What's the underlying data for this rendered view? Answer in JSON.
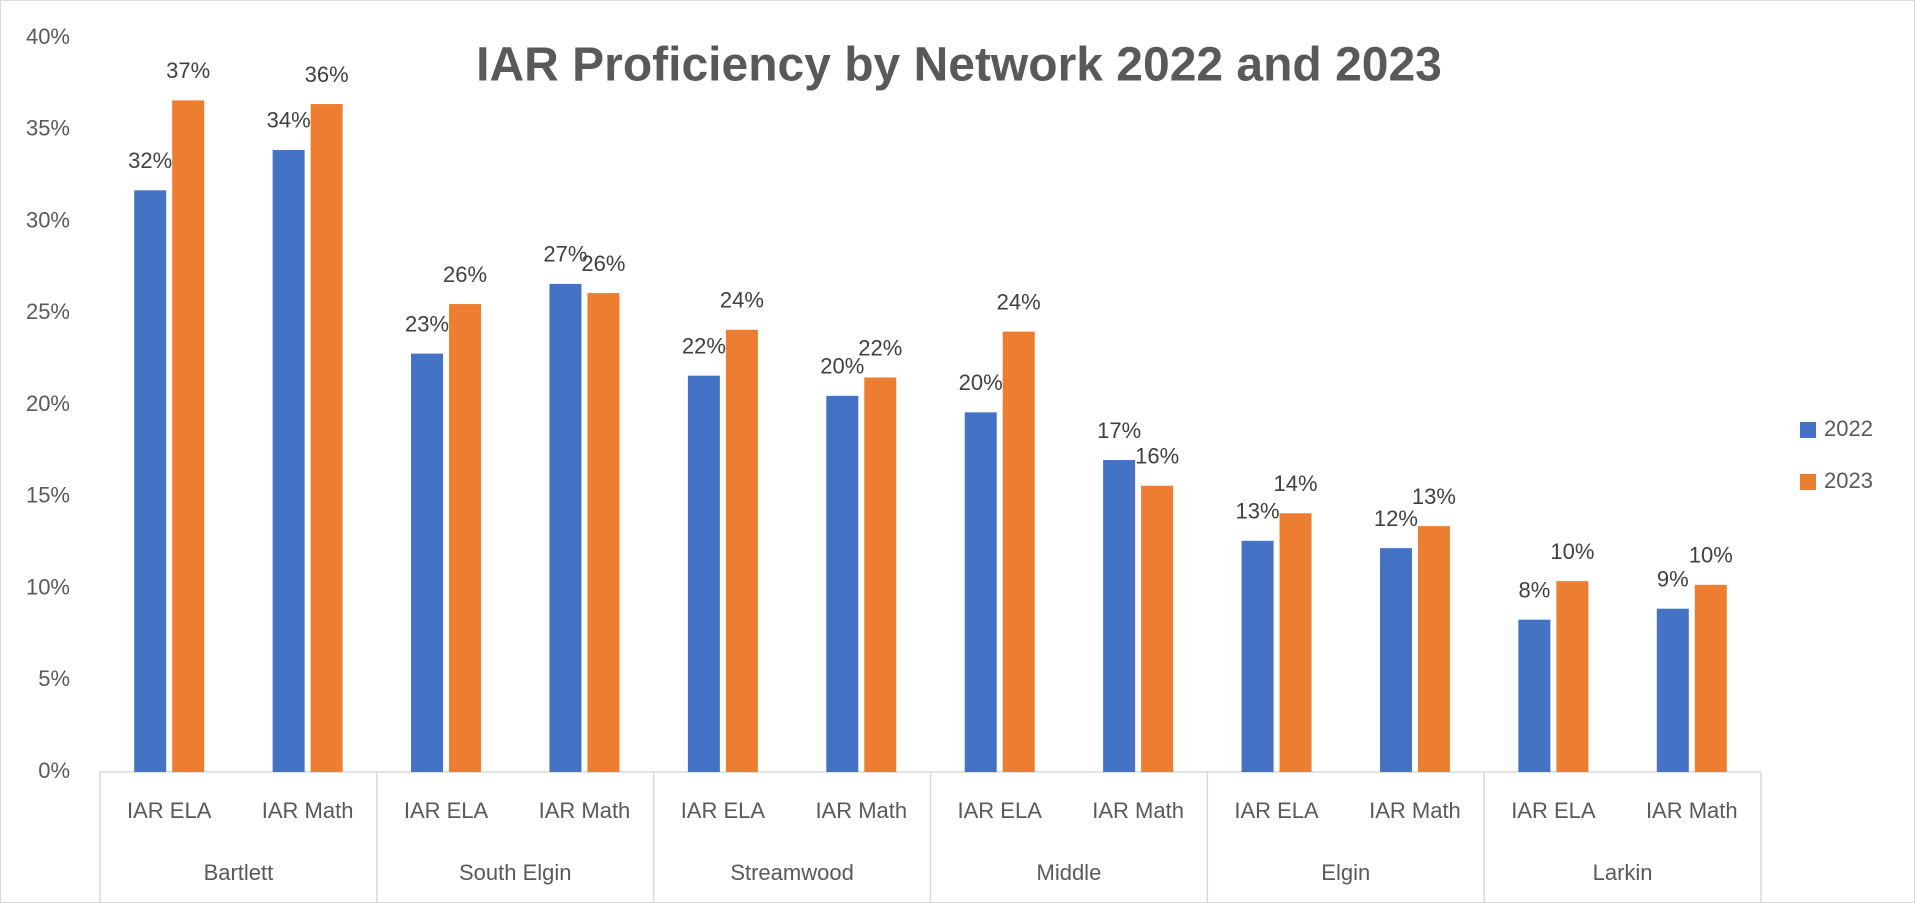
{
  "chart_data": {
    "type": "bar",
    "title": "IAR Proficiency by Network 2022 and 2023",
    "categories": [
      "IAR ELA",
      "IAR Math",
      "IAR ELA",
      "IAR Math",
      "IAR ELA",
      "IAR Math",
      "IAR ELA",
      "IAR Math",
      "IAR ELA",
      "IAR Math",
      "IAR ELA",
      "IAR Math"
    ],
    "groups": [
      "Bartlett",
      "South Elgin",
      "Streamwood",
      "Middle",
      "Elgin",
      "Larkin"
    ],
    "series": [
      {
        "name": "2022",
        "color": "#4472c4",
        "values": [
          31.7,
          33.9,
          22.8,
          26.6,
          21.6,
          20.5,
          19.6,
          17.0,
          12.6,
          12.2,
          8.3,
          8.9
        ],
        "value_labels": [
          "32%",
          "34%",
          "23%",
          "27%",
          "22%",
          "20%",
          "20%",
          "17%",
          "13%",
          "12%",
          "8%",
          "9%"
        ]
      },
      {
        "name": "2023",
        "color": "#ed7d31",
        "values": [
          36.6,
          36.4,
          25.5,
          26.1,
          24.1,
          21.5,
          24.0,
          15.6,
          14.1,
          13.4,
          10.4,
          10.2
        ],
        "value_labels": [
          "37%",
          "36%",
          "26%",
          "26%",
          "24%",
          "22%",
          "24%",
          "16%",
          "14%",
          "13%",
          "10%",
          "10%"
        ]
      }
    ],
    "ylim": [
      0,
      40
    ],
    "yticks": [
      {
        "value": 0,
        "label": "0%"
      },
      {
        "value": 5,
        "label": "5%"
      },
      {
        "value": 10,
        "label": "10%"
      },
      {
        "value": 15,
        "label": "15%"
      },
      {
        "value": 20,
        "label": "20%"
      },
      {
        "value": 25,
        "label": "25%"
      },
      {
        "value": 30,
        "label": "30%"
      },
      {
        "value": 35,
        "label": "35%"
      },
      {
        "value": 40,
        "label": "40%"
      }
    ],
    "grid": false,
    "legend": "right"
  }
}
